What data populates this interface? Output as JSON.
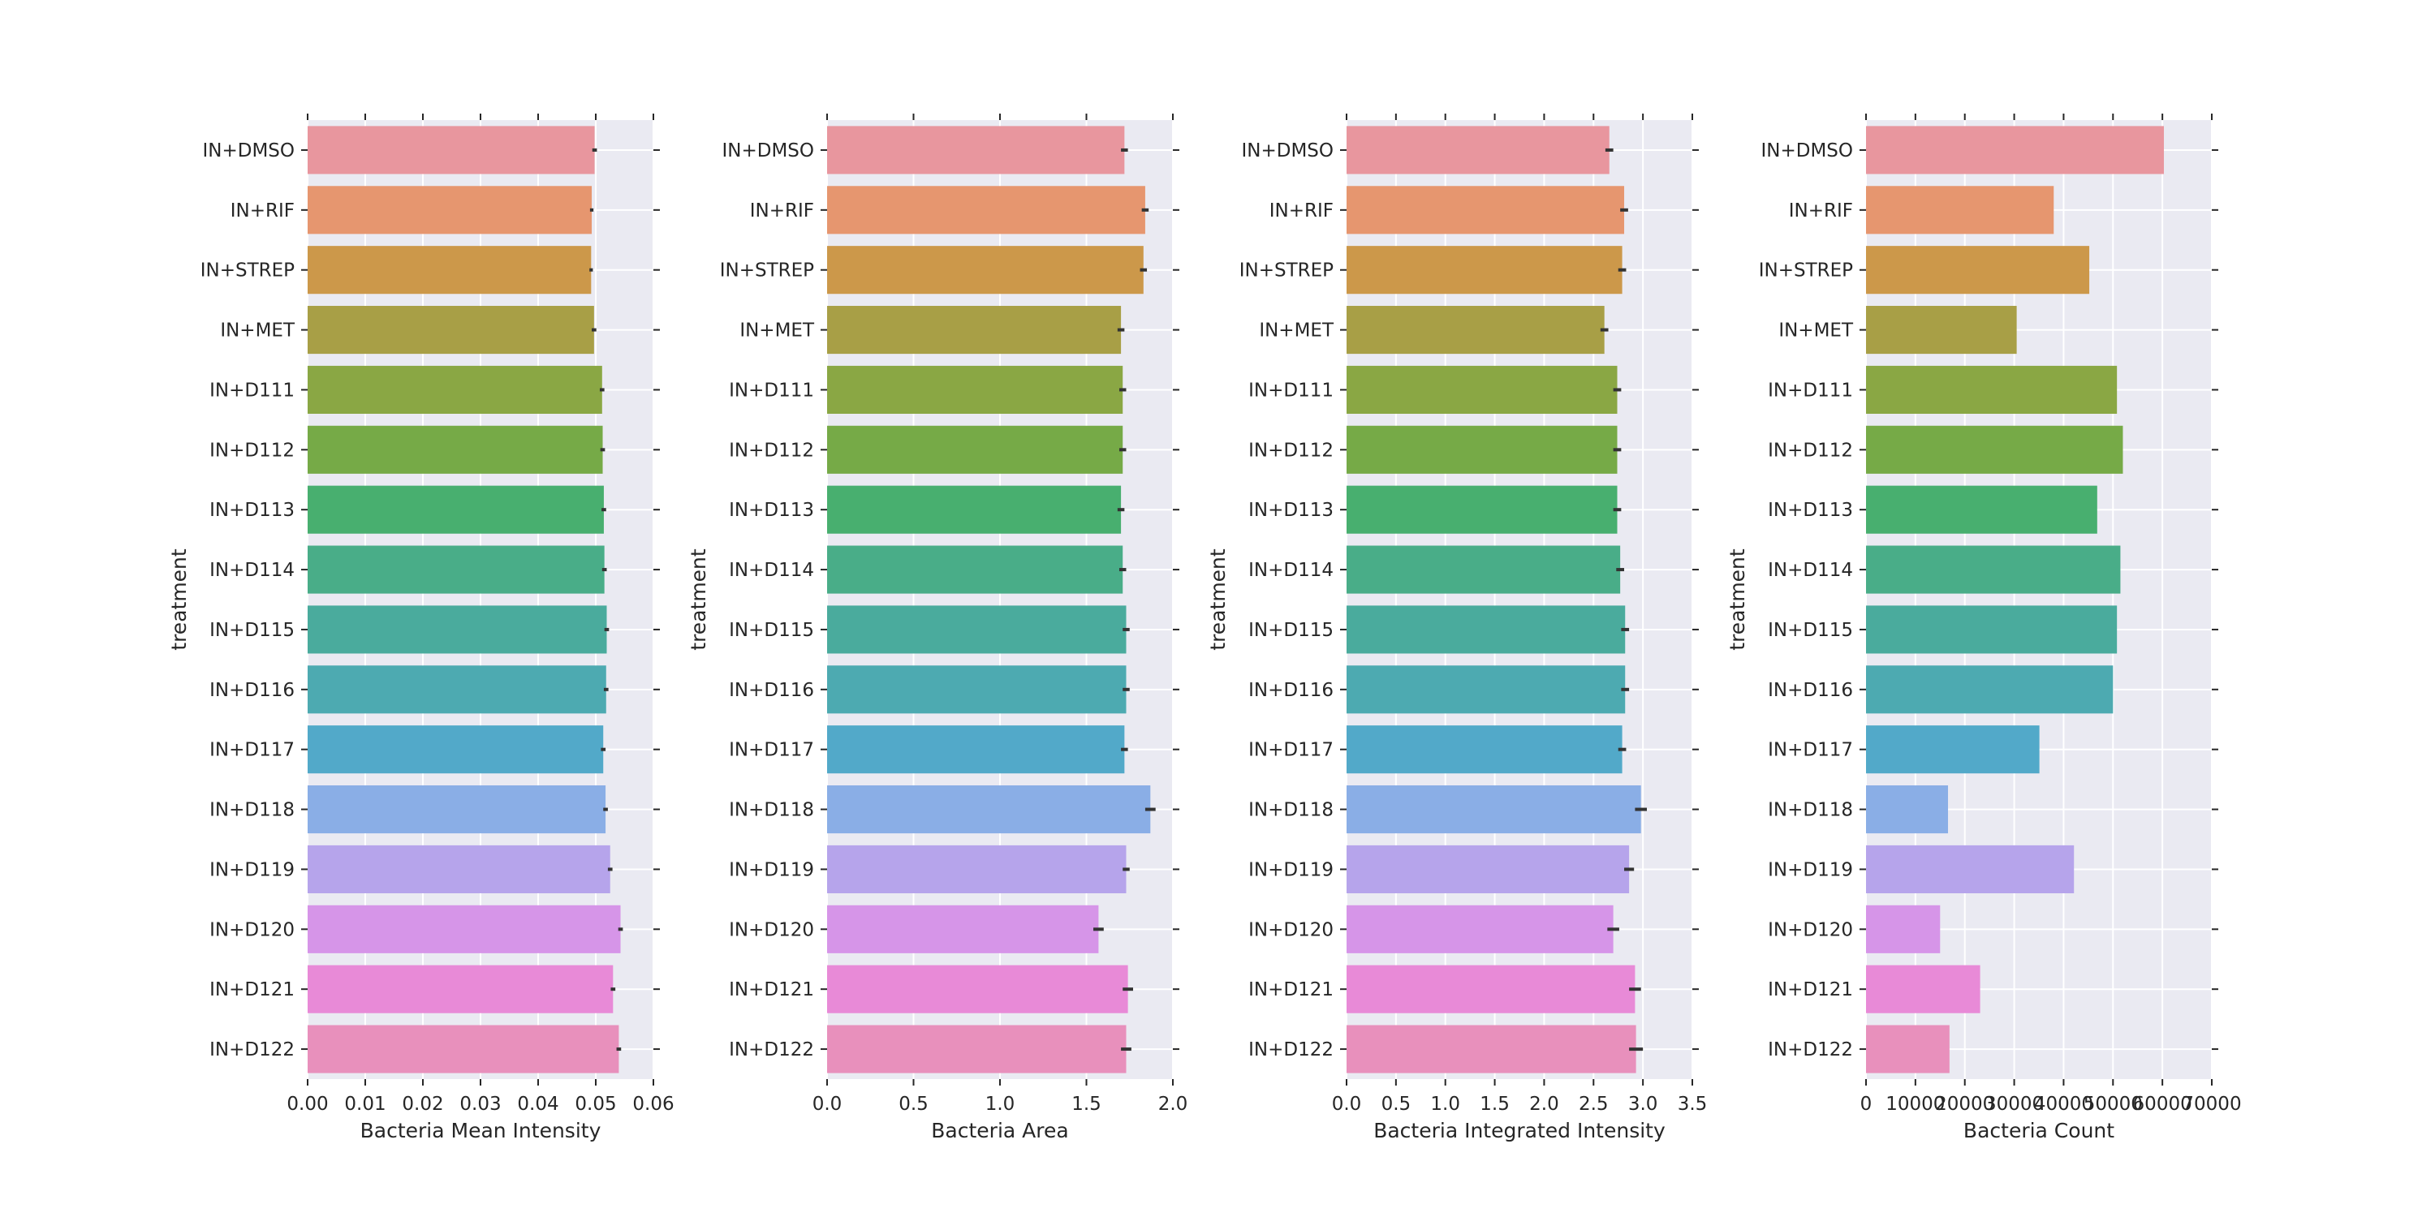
{
  "chart_data": [
    {
      "type": "bar",
      "orientation": "horizontal",
      "xlabel": "Bacteria Mean Intensity",
      "ylabel": "treatment",
      "xlim": [
        0,
        0.06
      ],
      "xticks": [
        0.0,
        0.01,
        0.02,
        0.03,
        0.04,
        0.05,
        0.06
      ],
      "xtick_labels": [
        "0.00",
        "0.01",
        "0.02",
        "0.03",
        "0.04",
        "0.05",
        "0.06"
      ],
      "grid": true,
      "categories": [
        "IN+DMSO",
        "IN+RIF",
        "IN+STREP",
        "IN+MET",
        "IN+D111",
        "IN+D112",
        "IN+D113",
        "IN+D114",
        "IN+D115",
        "IN+D116",
        "IN+D117",
        "IN+D118",
        "IN+D119",
        "IN+D120",
        "IN+D121",
        "IN+D122"
      ],
      "values": [
        0.0498,
        0.0493,
        0.0492,
        0.0497,
        0.0511,
        0.0512,
        0.0514,
        0.0515,
        0.0519,
        0.0518,
        0.0513,
        0.0517,
        0.0525,
        0.0543,
        0.053,
        0.054
      ],
      "errors": [
        0.0004,
        0.0003,
        0.0003,
        0.0004,
        0.0004,
        0.0004,
        0.0004,
        0.0004,
        0.0004,
        0.0004,
        0.0004,
        0.0004,
        0.0004,
        0.0004,
        0.0004,
        0.0004
      ]
    },
    {
      "type": "bar",
      "orientation": "horizontal",
      "xlabel": "Bacteria Area",
      "ylabel": "treatment",
      "xlim": [
        0,
        2.0
      ],
      "xticks": [
        0.0,
        0.5,
        1.0,
        1.5,
        2.0
      ],
      "xtick_labels": [
        "0.0",
        "0.5",
        "1.0",
        "1.5",
        "2.0"
      ],
      "grid": true,
      "categories": [
        "IN+DMSO",
        "IN+RIF",
        "IN+STREP",
        "IN+MET",
        "IN+D111",
        "IN+D112",
        "IN+D113",
        "IN+D114",
        "IN+D115",
        "IN+D116",
        "IN+D117",
        "IN+D118",
        "IN+D119",
        "IN+D120",
        "IN+D121",
        "IN+D122"
      ],
      "values": [
        1.72,
        1.84,
        1.83,
        1.7,
        1.71,
        1.71,
        1.7,
        1.71,
        1.73,
        1.73,
        1.72,
        1.87,
        1.73,
        1.57,
        1.74,
        1.73
      ],
      "errors": [
        0.02,
        0.02,
        0.02,
        0.02,
        0.02,
        0.02,
        0.02,
        0.02,
        0.02,
        0.02,
        0.02,
        0.03,
        0.02,
        0.03,
        0.03,
        0.03
      ]
    },
    {
      "type": "bar",
      "orientation": "horizontal",
      "xlabel": "Bacteria Integrated Intensity",
      "ylabel": "treatment",
      "xlim": [
        0,
        3.5
      ],
      "xticks": [
        0.0,
        0.5,
        1.0,
        1.5,
        2.0,
        2.5,
        3.0,
        3.5
      ],
      "xtick_labels": [
        "0.0",
        "0.5",
        "1.0",
        "1.5",
        "2.0",
        "2.5",
        "3.0",
        "3.5"
      ],
      "grid": true,
      "categories": [
        "IN+DMSO",
        "IN+RIF",
        "IN+STREP",
        "IN+MET",
        "IN+D111",
        "IN+D112",
        "IN+D113",
        "IN+D114",
        "IN+D115",
        "IN+D116",
        "IN+D117",
        "IN+D118",
        "IN+D119",
        "IN+D120",
        "IN+D121",
        "IN+D122"
      ],
      "values": [
        2.66,
        2.81,
        2.79,
        2.61,
        2.74,
        2.74,
        2.74,
        2.77,
        2.82,
        2.82,
        2.79,
        2.98,
        2.86,
        2.7,
        2.92,
        2.93
      ],
      "errors": [
        0.04,
        0.04,
        0.04,
        0.04,
        0.04,
        0.04,
        0.04,
        0.04,
        0.04,
        0.04,
        0.04,
        0.06,
        0.05,
        0.06,
        0.06,
        0.07
      ]
    },
    {
      "type": "bar",
      "orientation": "horizontal",
      "xlabel": "Bacteria Count",
      "ylabel": "treatment",
      "xlim": [
        0,
        70000
      ],
      "xticks": [
        0,
        10000,
        20000,
        30000,
        40000,
        50000,
        60000,
        70000
      ],
      "xtick_labels": [
        "0",
        "10000",
        "20000",
        "30000",
        "40000",
        "50000",
        "60000",
        "70000"
      ],
      "grid": true,
      "categories": [
        "IN+DMSO",
        "IN+RIF",
        "IN+STREP",
        "IN+MET",
        "IN+D111",
        "IN+D112",
        "IN+D113",
        "IN+D114",
        "IN+D115",
        "IN+D116",
        "IN+D117",
        "IN+D118",
        "IN+D119",
        "IN+D120",
        "IN+D121",
        "IN+D122"
      ],
      "values": [
        60300,
        38000,
        45200,
        30500,
        50800,
        52000,
        46800,
        51500,
        50800,
        50000,
        35100,
        16600,
        42100,
        15000,
        23100,
        16900
      ],
      "errors": [
        0,
        0,
        0,
        0,
        0,
        0,
        0,
        0,
        0,
        0,
        0,
        0,
        0,
        0,
        0,
        0
      ]
    }
  ],
  "colors": [
    "#e8969e",
    "#e6966f",
    "#cc984a",
    "#a89f46",
    "#8aa744",
    "#76aa47",
    "#48af6f",
    "#49ad88",
    "#4aab9d",
    "#4daab1",
    "#52a9c9",
    "#8aaee6",
    "#b6a4eb",
    "#d695e8",
    "#e88ad7",
    "#e890bc"
  ],
  "style": {
    "panel_background": "#eaeaf2",
    "grid_color": "#ffffff",
    "errorbar_color": "#333333"
  }
}
